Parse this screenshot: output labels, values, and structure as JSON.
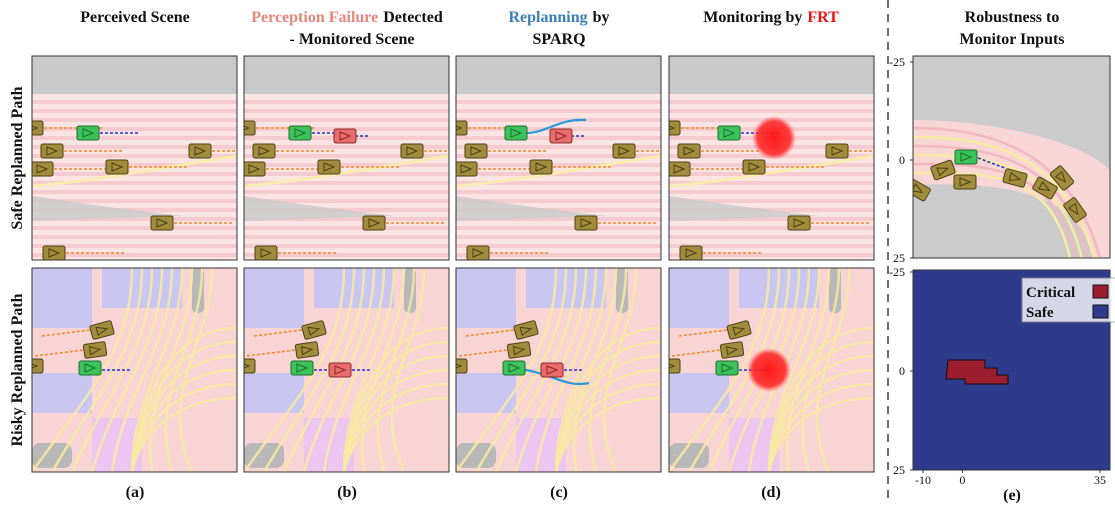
{
  "headers": {
    "perceived": "Perceived Scene",
    "failure": {
      "highlight": "Perception Failure",
      "rest": "Detected",
      "line2": "- Monitored Scene"
    },
    "replanning": {
      "highlight": "Replanning",
      "rest": "by",
      "line2": "SPARQ"
    },
    "monitoring": {
      "text": "Monitoring by",
      "highlight": "FRT"
    },
    "robustness": {
      "line1": "Robustness to",
      "line2": "Monitor Inputs"
    }
  },
  "rows": [
    "Safe Replanned Path",
    "Risky Replanned Path"
  ],
  "panel_labels": [
    "(a)",
    "(b)",
    "(c)",
    "(d)",
    "(e)"
  ],
  "robustness": {
    "top_plot": {
      "yticks": [
        -25,
        0,
        25
      ]
    },
    "bottom_plot": {
      "yticks": [
        -25,
        0,
        25
      ],
      "xticks": [
        -10,
        0,
        35
      ],
      "legend": [
        "Critical",
        "Safe"
      ]
    }
  }
}
